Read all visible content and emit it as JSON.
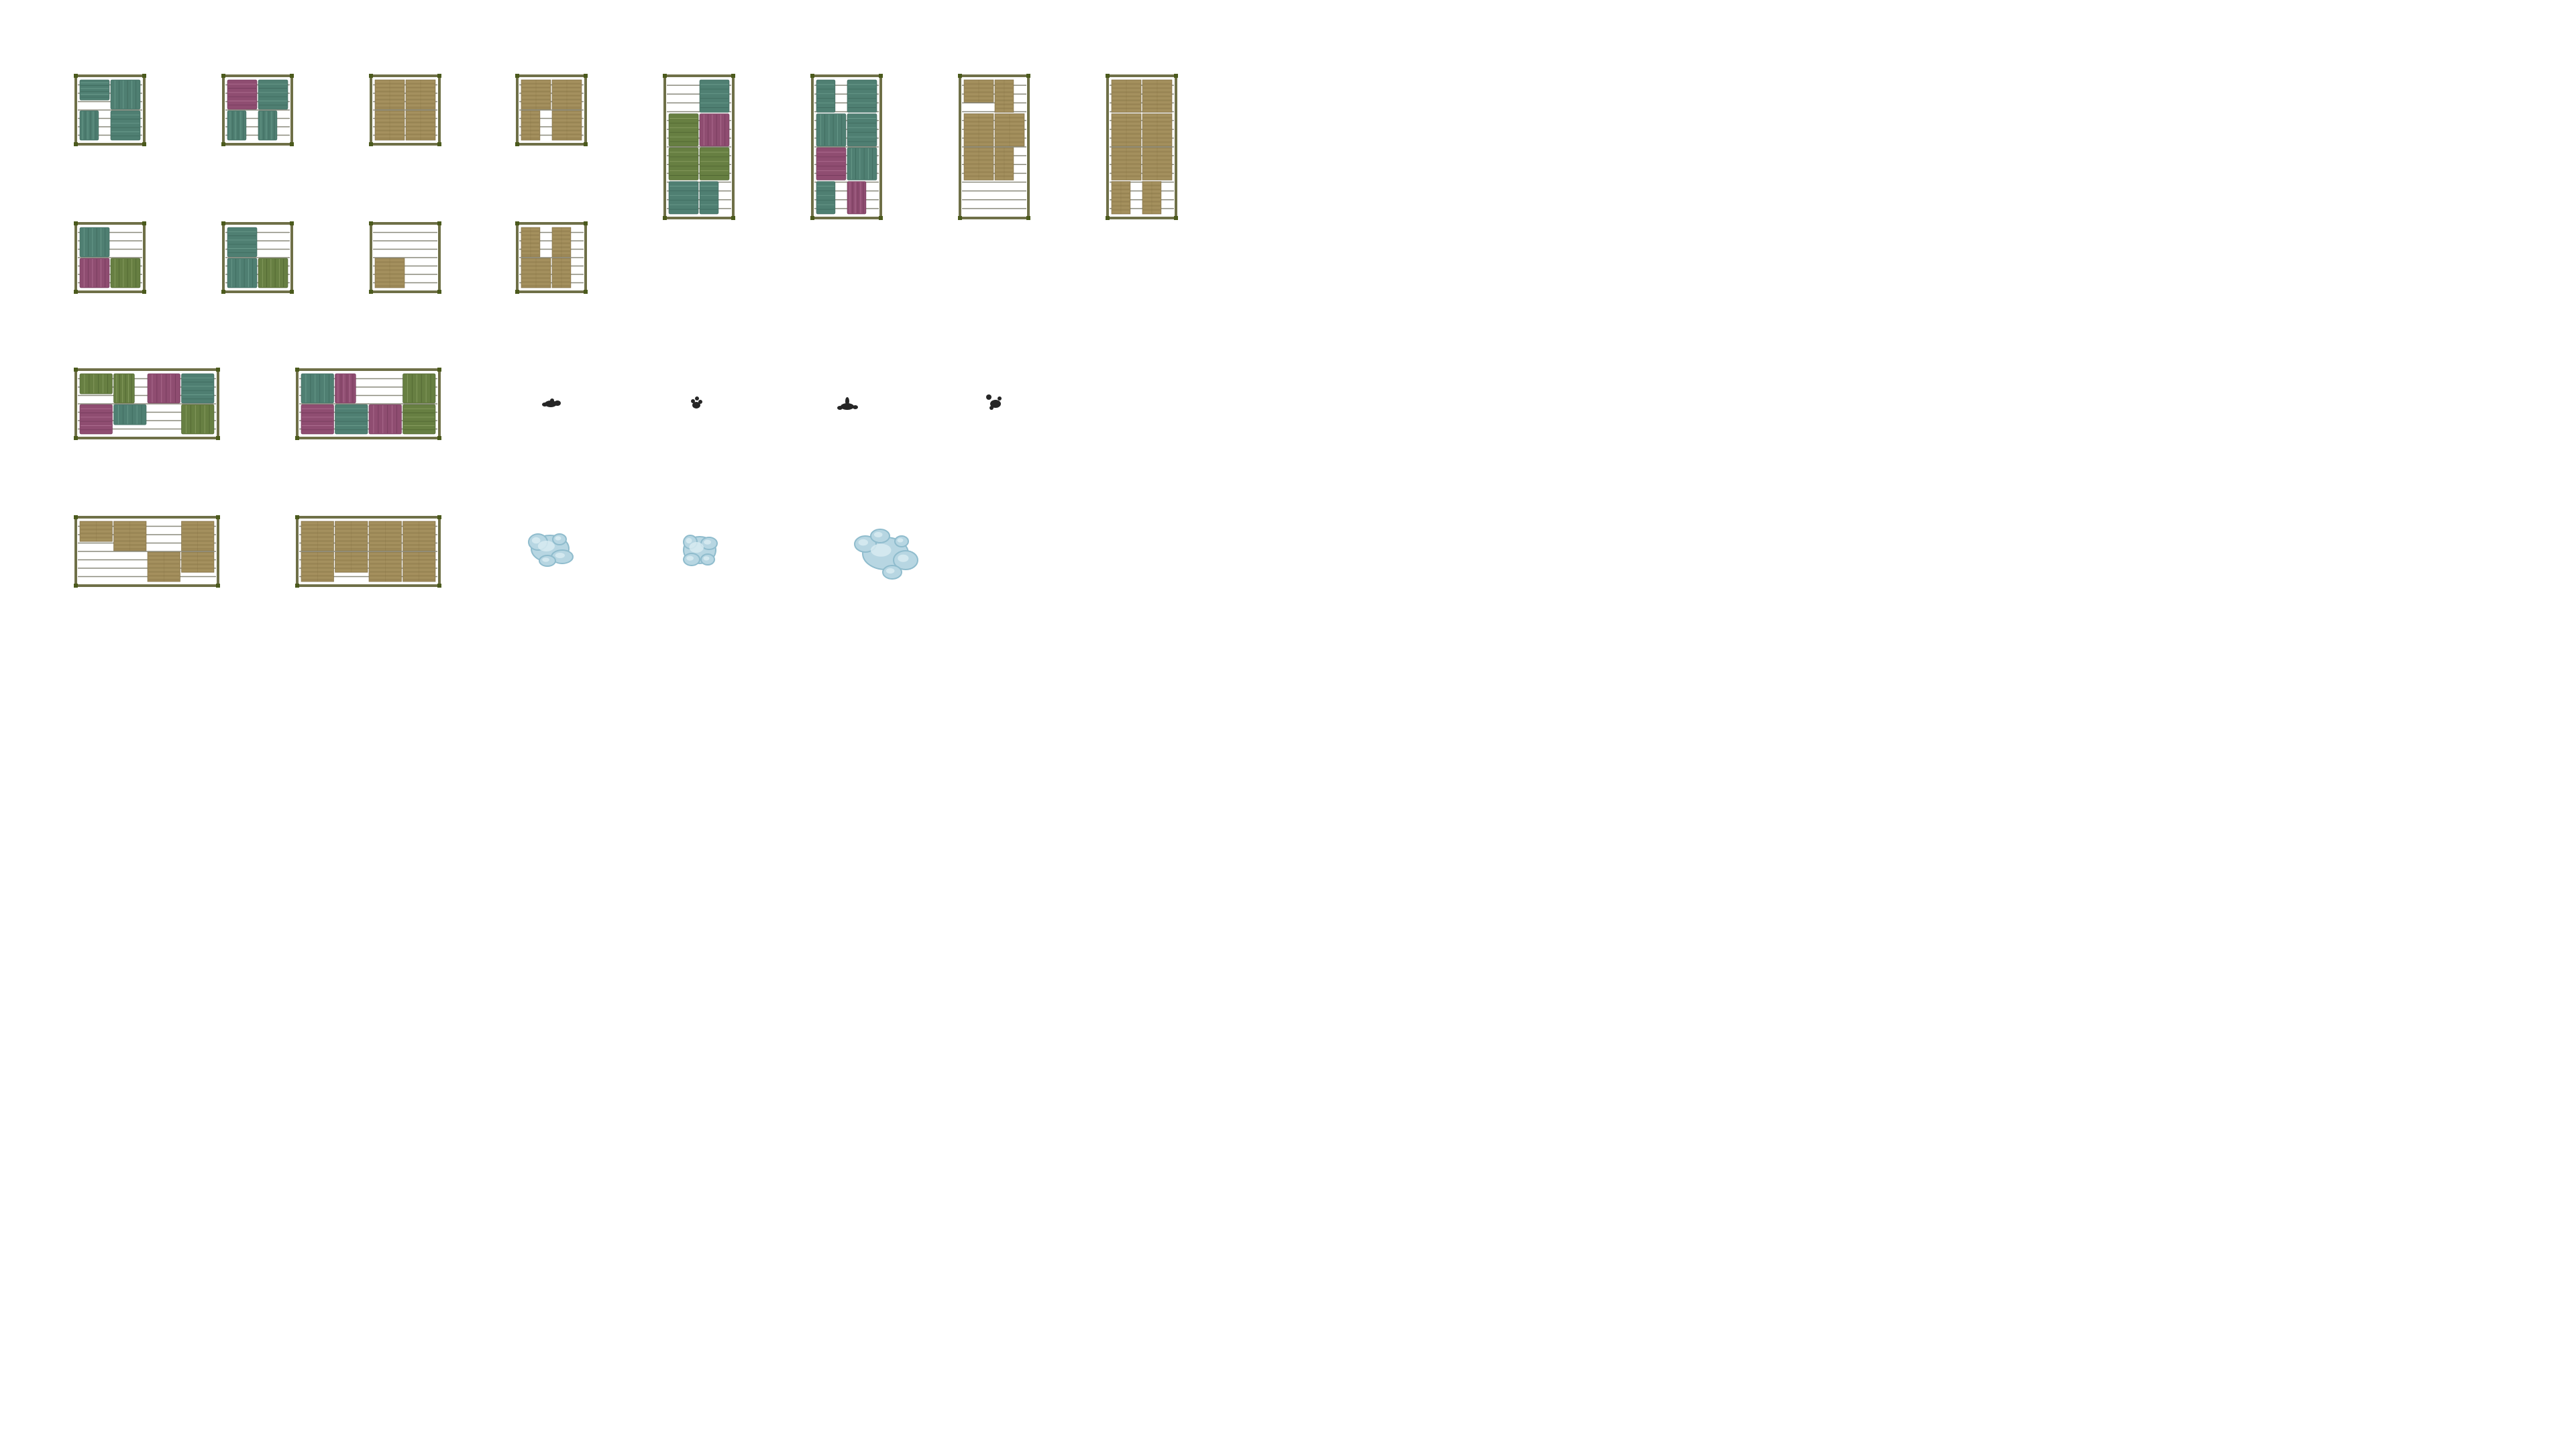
{
  "spritesheet": {
    "palette": {
      "frame": "#6f7048",
      "frame_dark": "#4f5a22",
      "corner": "#4b5a1c",
      "shelf_bg": "#ffffff",
      "shelf_line": "#8a8a7c",
      "teal": "#4f7f72",
      "teal_light": "#74a595",
      "teal_dark": "#3a6458",
      "olive_book": "#677f42",
      "olive_book_light": "#93a86a",
      "olive_book_dark": "#4a5f2c",
      "magenta": "#8f4d71",
      "magenta_light": "#b97a9c",
      "magenta_dark": "#6e3656",
      "box": "#a08c5a",
      "box_light": "#b9a571",
      "box_dark": "#7c6a3e",
      "ink": "#262626",
      "water": "#b7d6e2",
      "water_light": "#d9ecf3",
      "water_dark": "#8fbccd"
    },
    "sprites": [
      {
        "name": "shelf-small-books-a",
        "kind": "shelf",
        "fill": "books",
        "orientation": "square",
        "variant": "a"
      },
      {
        "name": "shelf-small-books-b",
        "kind": "shelf",
        "fill": "books",
        "orientation": "square",
        "variant": "b"
      },
      {
        "name": "shelf-small-boxes-a",
        "kind": "shelf",
        "fill": "boxes",
        "orientation": "square",
        "variant": "a"
      },
      {
        "name": "shelf-small-boxes-b",
        "kind": "shelf",
        "fill": "boxes",
        "orientation": "square",
        "variant": "b"
      },
      {
        "name": "shelf-tall-books-a",
        "kind": "shelf",
        "fill": "books",
        "orientation": "tall",
        "variant": "a"
      },
      {
        "name": "shelf-tall-books-b",
        "kind": "shelf",
        "fill": "books",
        "orientation": "tall",
        "variant": "b"
      },
      {
        "name": "shelf-tall-boxes-a",
        "kind": "shelf",
        "fill": "boxes",
        "orientation": "tall",
        "variant": "a"
      },
      {
        "name": "shelf-tall-boxes-b",
        "kind": "shelf",
        "fill": "boxes",
        "orientation": "tall",
        "variant": "b"
      },
      {
        "name": "shelf-small-books-c",
        "kind": "shelf",
        "fill": "books",
        "orientation": "square",
        "variant": "c"
      },
      {
        "name": "shelf-small-books-d",
        "kind": "shelf",
        "fill": "books",
        "orientation": "square",
        "variant": "d"
      },
      {
        "name": "shelf-small-boxes-c",
        "kind": "shelf",
        "fill": "boxes",
        "orientation": "square",
        "variant": "c"
      },
      {
        "name": "shelf-small-boxes-d",
        "kind": "shelf",
        "fill": "boxes",
        "orientation": "square",
        "variant": "d"
      },
      {
        "name": "shelf-wide-books-a",
        "kind": "shelf",
        "fill": "books",
        "orientation": "wide",
        "variant": "a"
      },
      {
        "name": "shelf-wide-books-b",
        "kind": "shelf",
        "fill": "books",
        "orientation": "wide",
        "variant": "b"
      },
      {
        "name": "ink-blot-a",
        "kind": "blot",
        "variant": "a"
      },
      {
        "name": "ink-blot-b",
        "kind": "blot",
        "variant": "b"
      },
      {
        "name": "ink-blot-c",
        "kind": "blot",
        "variant": "c"
      },
      {
        "name": "ink-blot-d",
        "kind": "blot",
        "variant": "d"
      },
      {
        "name": "shelf-wide-boxes-a",
        "kind": "shelf",
        "fill": "boxes",
        "orientation": "wide",
        "variant": "a"
      },
      {
        "name": "shelf-wide-boxes-b",
        "kind": "shelf",
        "fill": "boxes",
        "orientation": "wide",
        "variant": "b"
      },
      {
        "name": "water-puddle-a",
        "kind": "puddle",
        "variant": "a"
      },
      {
        "name": "water-puddle-b",
        "kind": "puddle",
        "variant": "b"
      },
      {
        "name": "water-puddle-c",
        "kind": "puddle",
        "variant": "c"
      }
    ]
  }
}
